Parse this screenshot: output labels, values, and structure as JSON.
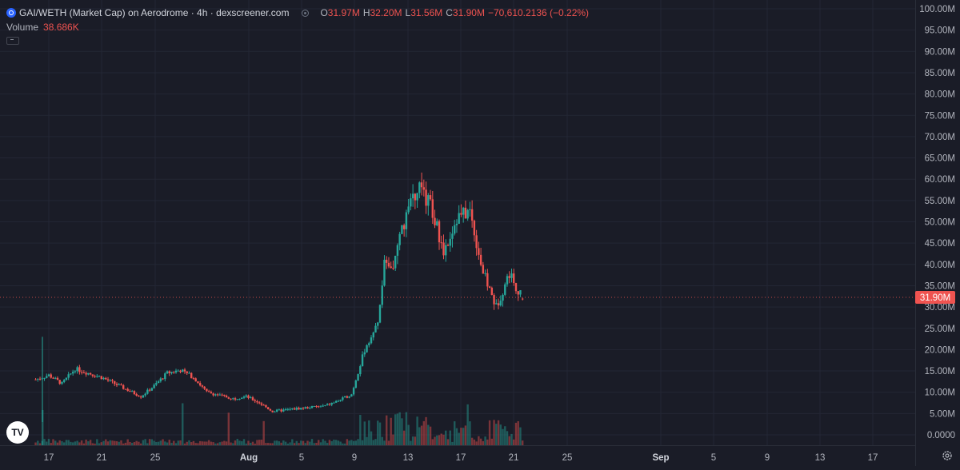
{
  "legend": {
    "title": "GAI/WETH (Market Cap) on Aerodrome · 4h · dexscreener.com",
    "open_key": "O",
    "open": "31.97M",
    "high_key": "H",
    "high": "32.20M",
    "low_key": "L",
    "low": "31.56M",
    "close_key": "C",
    "close": "31.90M",
    "change": "−70,610.2136 (−0.22%)",
    "volume_label": "Volume",
    "volume_value": "38.686K"
  },
  "price_axis_labels": [
    "100.00M",
    "95.00M",
    "90.00M",
    "85.00M",
    "80.00M",
    "75.00M",
    "70.00M",
    "65.00M",
    "60.00M",
    "55.00M",
    "50.00M",
    "45.00M",
    "40.00M",
    "35.00M",
    "30.00M",
    "25.00M",
    "20.00M",
    "15.00M",
    "10.00M",
    "5.00M",
    "0.0000"
  ],
  "price_marker": "31.90M",
  "time_axis_labels": [
    "17",
    "21",
    "25",
    "Aug",
    "5",
    "9",
    "13",
    "17",
    "21",
    "25",
    "Sep",
    "5",
    "9",
    "13",
    "17"
  ],
  "icons": {
    "chain": "blue-chain-icon",
    "visibility": "eye-icon",
    "logo": "tradingview-logo-icon",
    "settings": "gear-icon"
  },
  "colors": {
    "background": "#1a1c27",
    "up": "#26a69a",
    "down": "#ef5350",
    "text": "#d1d4dc",
    "axis_text": "#b2b5be"
  },
  "chart_data": {
    "type": "candlestick",
    "interval": "4h",
    "y_unit": "market cap (USD)",
    "ylim": [
      0,
      100000000
    ],
    "last": {
      "open": 31970000,
      "high": 32200000,
      "low": 31560000,
      "close": 31900000
    },
    "approx_close_path": [
      {
        "date": "Jul 16",
        "close": 13000000
      },
      {
        "date": "Jul 17",
        "close": 14000000
      },
      {
        "date": "Jul 18",
        "close": 12000000
      },
      {
        "date": "Jul 19",
        "close": 15500000
      },
      {
        "date": "Jul 21",
        "close": 13500000
      },
      {
        "date": "Jul 23",
        "close": 10500000
      },
      {
        "date": "Jul 24",
        "close": 9000000
      },
      {
        "date": "Jul 25",
        "close": 11500000
      },
      {
        "date": "Jul 26",
        "close": 14500000
      },
      {
        "date": "Jul 27",
        "close": 15200000
      },
      {
        "date": "Jul 28",
        "close": 13500000
      },
      {
        "date": "Jul 29",
        "close": 10000000
      },
      {
        "date": "Jul 31",
        "close": 8500000
      },
      {
        "date": "Aug 1",
        "close": 9000000
      },
      {
        "date": "Aug 2",
        "close": 7500000
      },
      {
        "date": "Aug 3",
        "close": 5500000
      },
      {
        "date": "Aug 5",
        "close": 6200000
      },
      {
        "date": "Aug 7",
        "close": 6800000
      },
      {
        "date": "Aug 8",
        "close": 8000000
      },
      {
        "date": "Aug 9",
        "close": 9500000
      },
      {
        "date": "Aug 10",
        "close": 20000000
      },
      {
        "date": "Aug 11",
        "close": 26000000
      },
      {
        "date": "Aug 11 12:00",
        "close": 40000000
      },
      {
        "date": "Aug 12",
        "close": 38000000
      },
      {
        "date": "Aug 13",
        "close": 50000000
      },
      {
        "date": "Aug 14",
        "close": 58000000
      },
      {
        "date": "Aug 15",
        "close": 54000000
      },
      {
        "date": "Aug 16",
        "close": 43000000
      },
      {
        "date": "Aug 17",
        "close": 51000000
      },
      {
        "date": "Aug 18",
        "close": 52500000
      },
      {
        "date": "Aug 19",
        "close": 38000000
      },
      {
        "date": "Aug 20",
        "close": 30000000
      },
      {
        "date": "Aug 21",
        "close": 38000000
      },
      {
        "date": "Aug 22",
        "close": 31900000
      }
    ]
  }
}
